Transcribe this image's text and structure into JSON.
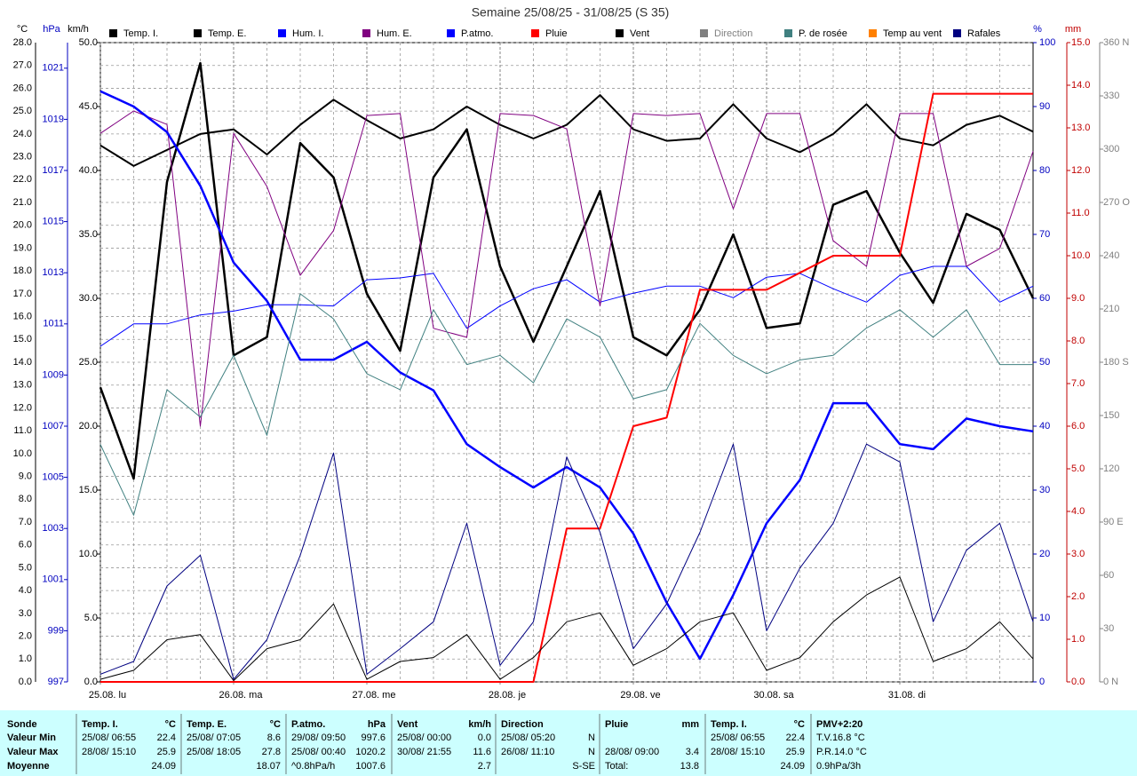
{
  "chart_data": {
    "type": "line",
    "title": "Semaine 25/08/25 - 31/08/25 (S 35)",
    "x": [
      0,
      6,
      12,
      18,
      24,
      30,
      36,
      42,
      48,
      54,
      60,
      66,
      72,
      78,
      84,
      90,
      96,
      102,
      108,
      114,
      120,
      126,
      132,
      138,
      144,
      150,
      156,
      162,
      168
    ],
    "xlim": [
      0,
      168
    ],
    "xticks": [
      {
        "value": 0,
        "label": "25.08. lu"
      },
      {
        "value": 24,
        "label": "26.08. ma"
      },
      {
        "value": 48,
        "label": "27.08. me"
      },
      {
        "value": 72,
        "label": "28.08. je"
      },
      {
        "value": 96,
        "label": "29.08. ve"
      },
      {
        "value": 120,
        "label": "30.08. sa"
      },
      {
        "value": 144,
        "label": "31.08. di"
      }
    ],
    "xgrid": [
      6,
      12,
      18,
      30,
      36,
      42,
      54,
      60,
      66,
      78,
      84,
      90,
      102,
      108,
      114,
      126,
      132,
      138,
      150,
      156,
      162
    ],
    "grid": true,
    "ylabel": "°C",
    "ylim": [
      0,
      28
    ],
    "yticks": [
      {
        "value": 0,
        "label": "0.0"
      },
      {
        "value": 1,
        "label": "1.0"
      },
      {
        "value": 2,
        "label": "2.0"
      },
      {
        "value": 3,
        "label": "3.0"
      },
      {
        "value": 4,
        "label": "4.0"
      },
      {
        "value": 5,
        "label": "5.0"
      },
      {
        "value": 6,
        "label": "6.0"
      },
      {
        "value": 7,
        "label": "7.0"
      },
      {
        "value": 8,
        "label": "8.0"
      },
      {
        "value": 9,
        "label": "9.0"
      },
      {
        "value": 10,
        "label": "10.0"
      },
      {
        "value": 11,
        "label": "11.0"
      },
      {
        "value": 12,
        "label": "12.0"
      },
      {
        "value": 13,
        "label": "13.0"
      },
      {
        "value": 14,
        "label": "14.0"
      },
      {
        "value": 15,
        "label": "15.0"
      },
      {
        "value": 16,
        "label": "16.0"
      },
      {
        "value": 17,
        "label": "17.0"
      },
      {
        "value": 18,
        "label": "18.0"
      },
      {
        "value": 19,
        "label": "19.0"
      },
      {
        "value": 20,
        "label": "20.0"
      },
      {
        "value": 21,
        "label": "21.0"
      },
      {
        "value": 22,
        "label": "22.0"
      },
      {
        "value": 23,
        "label": "23.0"
      },
      {
        "value": 24,
        "label": "24.0"
      },
      {
        "value": 25,
        "label": "25.0"
      },
      {
        "value": 26,
        "label": "26.0"
      },
      {
        "value": 27,
        "label": "27.0"
      },
      {
        "value": 28,
        "label": "28.0"
      }
    ],
    "y2label": "hPa",
    "y2lim": [
      997,
      1022
    ],
    "y2ticks": [
      997,
      999,
      1001,
      1003,
      1005,
      1007,
      1009,
      1011,
      1013,
      1015,
      1017,
      1019,
      1021
    ],
    "y3label": "km/h",
    "y3lim": [
      0,
      50
    ],
    "y3ticks": [
      {
        "value": 0,
        "label": "0.0"
      },
      {
        "value": 5,
        "label": "5.0"
      },
      {
        "value": 10,
        "label": "10.0"
      },
      {
        "value": 15,
        "label": "15.0"
      },
      {
        "value": 20,
        "label": "20.0"
      },
      {
        "value": 25,
        "label": "25.0"
      },
      {
        "value": 30,
        "label": "30.0"
      },
      {
        "value": 35,
        "label": "35.0"
      },
      {
        "value": 40,
        "label": "40.0"
      },
      {
        "value": 45,
        "label": "45.0"
      },
      {
        "value": 50,
        "label": "50.0"
      }
    ],
    "y4label": "%",
    "y4lim": [
      0,
      100
    ],
    "y4ticks": [
      0,
      10,
      20,
      30,
      40,
      50,
      60,
      70,
      80,
      90,
      100
    ],
    "y5label": "mm",
    "y5lim": [
      0,
      15
    ],
    "y5ticks": [
      {
        "value": 0,
        "label": "0.0"
      },
      {
        "value": 1,
        "label": "1.0"
      },
      {
        "value": 2,
        "label": "2.0"
      },
      {
        "value": 3,
        "label": "3.0"
      },
      {
        "value": 4,
        "label": "4.0"
      },
      {
        "value": 5,
        "label": "5.0"
      },
      {
        "value": 6,
        "label": "6.0"
      },
      {
        "value": 7,
        "label": "7.0"
      },
      {
        "value": 8,
        "label": "8.0"
      },
      {
        "value": 9,
        "label": "9.0"
      },
      {
        "value": 10,
        "label": "10.0"
      },
      {
        "value": 11,
        "label": "11.0"
      },
      {
        "value": 12,
        "label": "12.0"
      },
      {
        "value": 13,
        "label": "13.0"
      },
      {
        "value": 14,
        "label": "14.0"
      },
      {
        "value": 15,
        "label": "15.0"
      }
    ],
    "y6lim": [
      0,
      360
    ],
    "y6ticks": [
      {
        "value": 0,
        "label": "0 N"
      },
      30,
      60,
      {
        "value": 90,
        "label": "90 E"
      },
      120,
      150,
      {
        "value": 180,
        "label": "180 S"
      },
      210,
      240,
      {
        "value": 270,
        "label": "270 O"
      },
      300,
      330,
      {
        "value": 360,
        "label": "360 N"
      }
    ],
    "series": [
      {
        "name": "Temp. I.",
        "color": "#000000",
        "axis": "y",
        "values": [
          23.5,
          22.6,
          23.3,
          24.0,
          24.2,
          23.1,
          24.4,
          25.5,
          24.6,
          23.8,
          24.2,
          25.2,
          24.4,
          23.8,
          24.4,
          25.7,
          24.2,
          23.7,
          23.8,
          25.3,
          23.8,
          23.2,
          24.0,
          25.3,
          23.8,
          23.5,
          24.4,
          24.8,
          24.1
        ]
      },
      {
        "name": "Temp. E.",
        "color": "#000000",
        "axis": "y",
        "values": [
          12.9,
          8.9,
          21.9,
          27.1,
          14.3,
          15.1,
          23.6,
          22.1,
          17.0,
          14.5,
          22.1,
          24.2,
          18.2,
          14.9,
          18.2,
          21.5,
          15.1,
          14.3,
          16.3,
          19.6,
          15.5,
          15.7,
          20.9,
          21.5,
          18.8,
          16.6,
          20.5,
          19.8,
          16.8
        ]
      },
      {
        "name": "Hum. I.",
        "color": "#0000ff",
        "axis": "y4",
        "values": [
          52.5,
          56,
          56,
          57.4,
          58,
          59,
          59,
          58.8,
          62.9,
          63.2,
          63.9,
          55.3,
          58.8,
          61.5,
          62.9,
          59.4,
          60.8,
          61.9,
          61.9,
          60.1,
          63.3,
          63.9,
          61.5,
          59.4,
          63.6,
          65,
          65,
          59.4,
          61.9
        ]
      },
      {
        "name": "Hum. E.",
        "color": "#800080",
        "axis": "y4",
        "values": [
          85.8,
          89.3,
          87.2,
          40,
          85.8,
          77.5,
          63.6,
          70.6,
          88.6,
          88.9,
          55.3,
          53.9,
          88.9,
          88.6,
          86.5,
          58.8,
          88.9,
          88.6,
          88.9,
          74,
          88.9,
          88.9,
          69,
          65,
          88.9,
          88.9,
          65,
          67.8,
          83
        ]
      },
      {
        "name": "P.atmo.",
        "color": "#0000ff",
        "axis": "y2",
        "values": [
          1020.1,
          1019.5,
          1018.5,
          1016.4,
          1013.4,
          1011.9,
          1009.6,
          1009.6,
          1010.3,
          1009.1,
          1008.4,
          1006.3,
          1005.4,
          1004.6,
          1005.4,
          1004.6,
          1002.8,
          1000.1,
          997.9,
          1000.4,
          1003.2,
          1004.9,
          1007.9,
          1007.9,
          1006.3,
          1006.1,
          1007.3,
          1007,
          1006.8
        ]
      },
      {
        "name": "Pluie",
        "color": "#ff0000",
        "axis": "y5",
        "values": [
          0,
          0,
          0,
          0,
          0,
          0,
          0,
          0,
          0,
          0,
          0,
          0,
          0,
          0,
          3.6,
          3.6,
          6.0,
          6.2,
          9.2,
          9.2,
          9.2,
          9.6,
          10.0,
          10.0,
          10.0,
          13.8,
          13.8,
          13.8,
          13.8
        ]
      },
      {
        "name": "Vent",
        "color": "#000000",
        "axis": "y3",
        "values": [
          0.2,
          0.9,
          3.3,
          3.7,
          0.1,
          2.6,
          3.3,
          6.1,
          0.2,
          1.6,
          1.9,
          3.7,
          0.2,
          1.9,
          4.7,
          5.4,
          1.3,
          2.6,
          4.7,
          5.4,
          0.9,
          1.9,
          4.7,
          6.8,
          8.2,
          1.6,
          2.6,
          4.7,
          1.8
        ]
      },
      {
        "name": "Direction",
        "color": "#808080"
      },
      {
        "name": "P. de rosée",
        "color": "#408080",
        "axis": "y",
        "values": [
          10.4,
          7.3,
          12.8,
          11.6,
          14.3,
          10.8,
          17.0,
          15.9,
          13.5,
          12.8,
          16.3,
          13.9,
          14.3,
          13.1,
          15.9,
          15.1,
          12.4,
          12.8,
          15.7,
          14.3,
          13.5,
          14.1,
          14.3,
          15.5,
          16.3,
          15.1,
          16.3,
          13.9,
          13.9
        ]
      },
      {
        "name": "Temp au vent",
        "color": "#ff8000"
      },
      {
        "name": "Rafales",
        "color": "#000080",
        "axis": "y3",
        "values": [
          0.6,
          1.6,
          7.5,
          9.9,
          0.2,
          3.3,
          9.9,
          17.9,
          0.6,
          2.6,
          4.7,
          12.4,
          1.3,
          4.7,
          17.6,
          11.7,
          2.6,
          6.1,
          11.7,
          18.6,
          4,
          8.9,
          12.4,
          18.6,
          17.2,
          4.7,
          10.3,
          12.4,
          4.7
        ]
      }
    ]
  },
  "table": {
    "row_labels": [
      "Sonde",
      "Valeur Min",
      "Valeur Max",
      "Moyenne"
    ],
    "columns": [
      {
        "title": "Temp. I.",
        "unit": "°C",
        "cells": [
          [
            "25/08/ 06:55",
            "22.4"
          ],
          [
            "28/08/ 15:10",
            "25.9"
          ],
          [
            null,
            "24.09"
          ]
        ]
      },
      {
        "title": "Temp. E.",
        "unit": "°C",
        "cells": [
          [
            "25/08/ 07:05",
            "8.6"
          ],
          [
            "25/08/ 18:05",
            "27.8"
          ],
          [
            null,
            "18.07"
          ]
        ]
      },
      {
        "title": "P.atmo.",
        "unit": "hPa",
        "cells": [
          [
            "29/08/ 09:50",
            "997.6"
          ],
          [
            "25/08/ 00:40",
            "1020.2"
          ],
          [
            "^0.8hPa/h",
            "1007.6"
          ]
        ]
      },
      {
        "title": "Vent",
        "unit": "km/h",
        "cells": [
          [
            "25/08/ 00:00",
            "0.0"
          ],
          [
            "30/08/ 21:55",
            "11.6"
          ],
          [
            null,
            "2.7"
          ]
        ]
      },
      {
        "title": "Direction",
        "unit": null,
        "cells": [
          [
            "25/08/ 05:20",
            "N"
          ],
          [
            "26/08/ 11:10",
            "N"
          ],
          [
            null,
            "S-SE"
          ]
        ]
      },
      {
        "title": "Pluie",
        "unit": "mm",
        "cells": [
          [
            null,
            null
          ],
          [
            "28/08/ 09:00",
            "3.4"
          ],
          [
            "Total:",
            "13.8"
          ]
        ]
      },
      {
        "title": "Temp. I.",
        "unit": "°C",
        "cells": [
          [
            "25/08/ 06:55",
            "22.4"
          ],
          [
            "28/08/ 15:10",
            "25.9"
          ],
          [
            null,
            "24.09"
          ]
        ]
      },
      {
        "title": "PMV+2:20",
        "unit": null,
        "cells": [
          [
            "T.V.16.8 °C",
            null
          ],
          [
            "P.R.14.0 °C",
            null
          ],
          [
            "0.9hPa/3h",
            null
          ]
        ]
      }
    ]
  }
}
